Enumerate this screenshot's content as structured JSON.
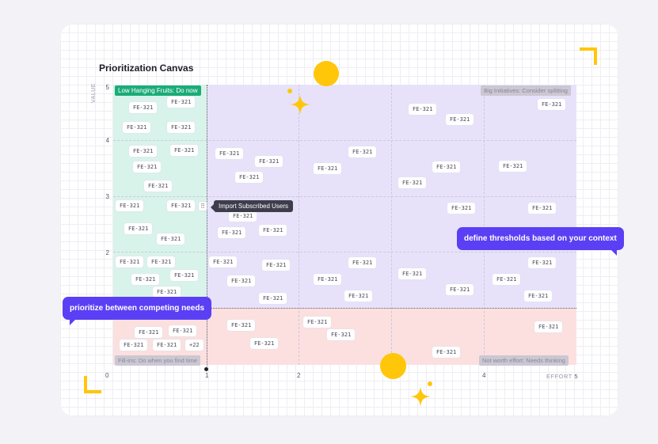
{
  "canvas": {
    "title": "Prioritization Canvas",
    "y_axis_title": "VALUE",
    "x_axis_title": "EFFORT",
    "y_ticks": [
      "5",
      "4",
      "3",
      "2"
    ],
    "x_ticks": [
      "0",
      "1",
      "2",
      "4",
      "5"
    ]
  },
  "quadrants": {
    "low_hanging": "Low Hanging Fruits: Do now",
    "big_initiatives": "Big Initiatives: Consider splitting",
    "fill_ins": "Fill-ins: Do when you find time",
    "not_worth": "Not worth effort: Needs thinking"
  },
  "tooltip": "Import Subscribed Users",
  "handle_icon": "⠿",
  "callouts": {
    "left": "prioritize between competing needs",
    "right": "define thresholds based on your context"
  },
  "chips": {
    "default_label": "FE-321",
    "overflow_label": "+22"
  },
  "colors": {
    "low_hanging_zone": "#d8f3ea",
    "big_initiatives_zone": "#e7e2fa",
    "fill_ins_zone": "#fbe0df",
    "accent_purple": "#5b3ff5",
    "accent_yellow": "#ffc60a",
    "label_green": "#1bab78"
  }
}
